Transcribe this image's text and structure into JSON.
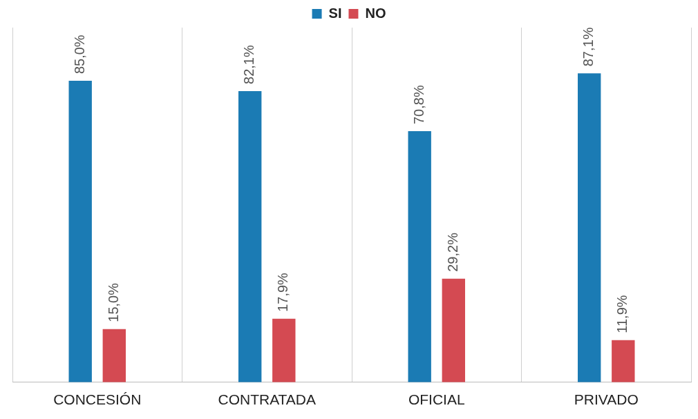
{
  "chart_data": {
    "type": "bar",
    "categories": [
      "CONCESIÓN",
      "CONTRATADA",
      "OFICIAL",
      "PRIVADO"
    ],
    "series": [
      {
        "name": "SI",
        "color": "#1b7bb4",
        "values": [
          85.0,
          82.1,
          70.8,
          87.1
        ],
        "value_labels": [
          "85,0%",
          "82,1%",
          "70,8%",
          "87,1%"
        ]
      },
      {
        "name": "NO",
        "color": "#d44a52",
        "values": [
          15.0,
          17.9,
          29.2,
          11.9
        ],
        "value_labels": [
          "15,0%",
          "17,9%",
          "29,2%",
          "11,9%"
        ]
      }
    ],
    "relative": false,
    "grid": "x",
    "legend": "top"
  }
}
